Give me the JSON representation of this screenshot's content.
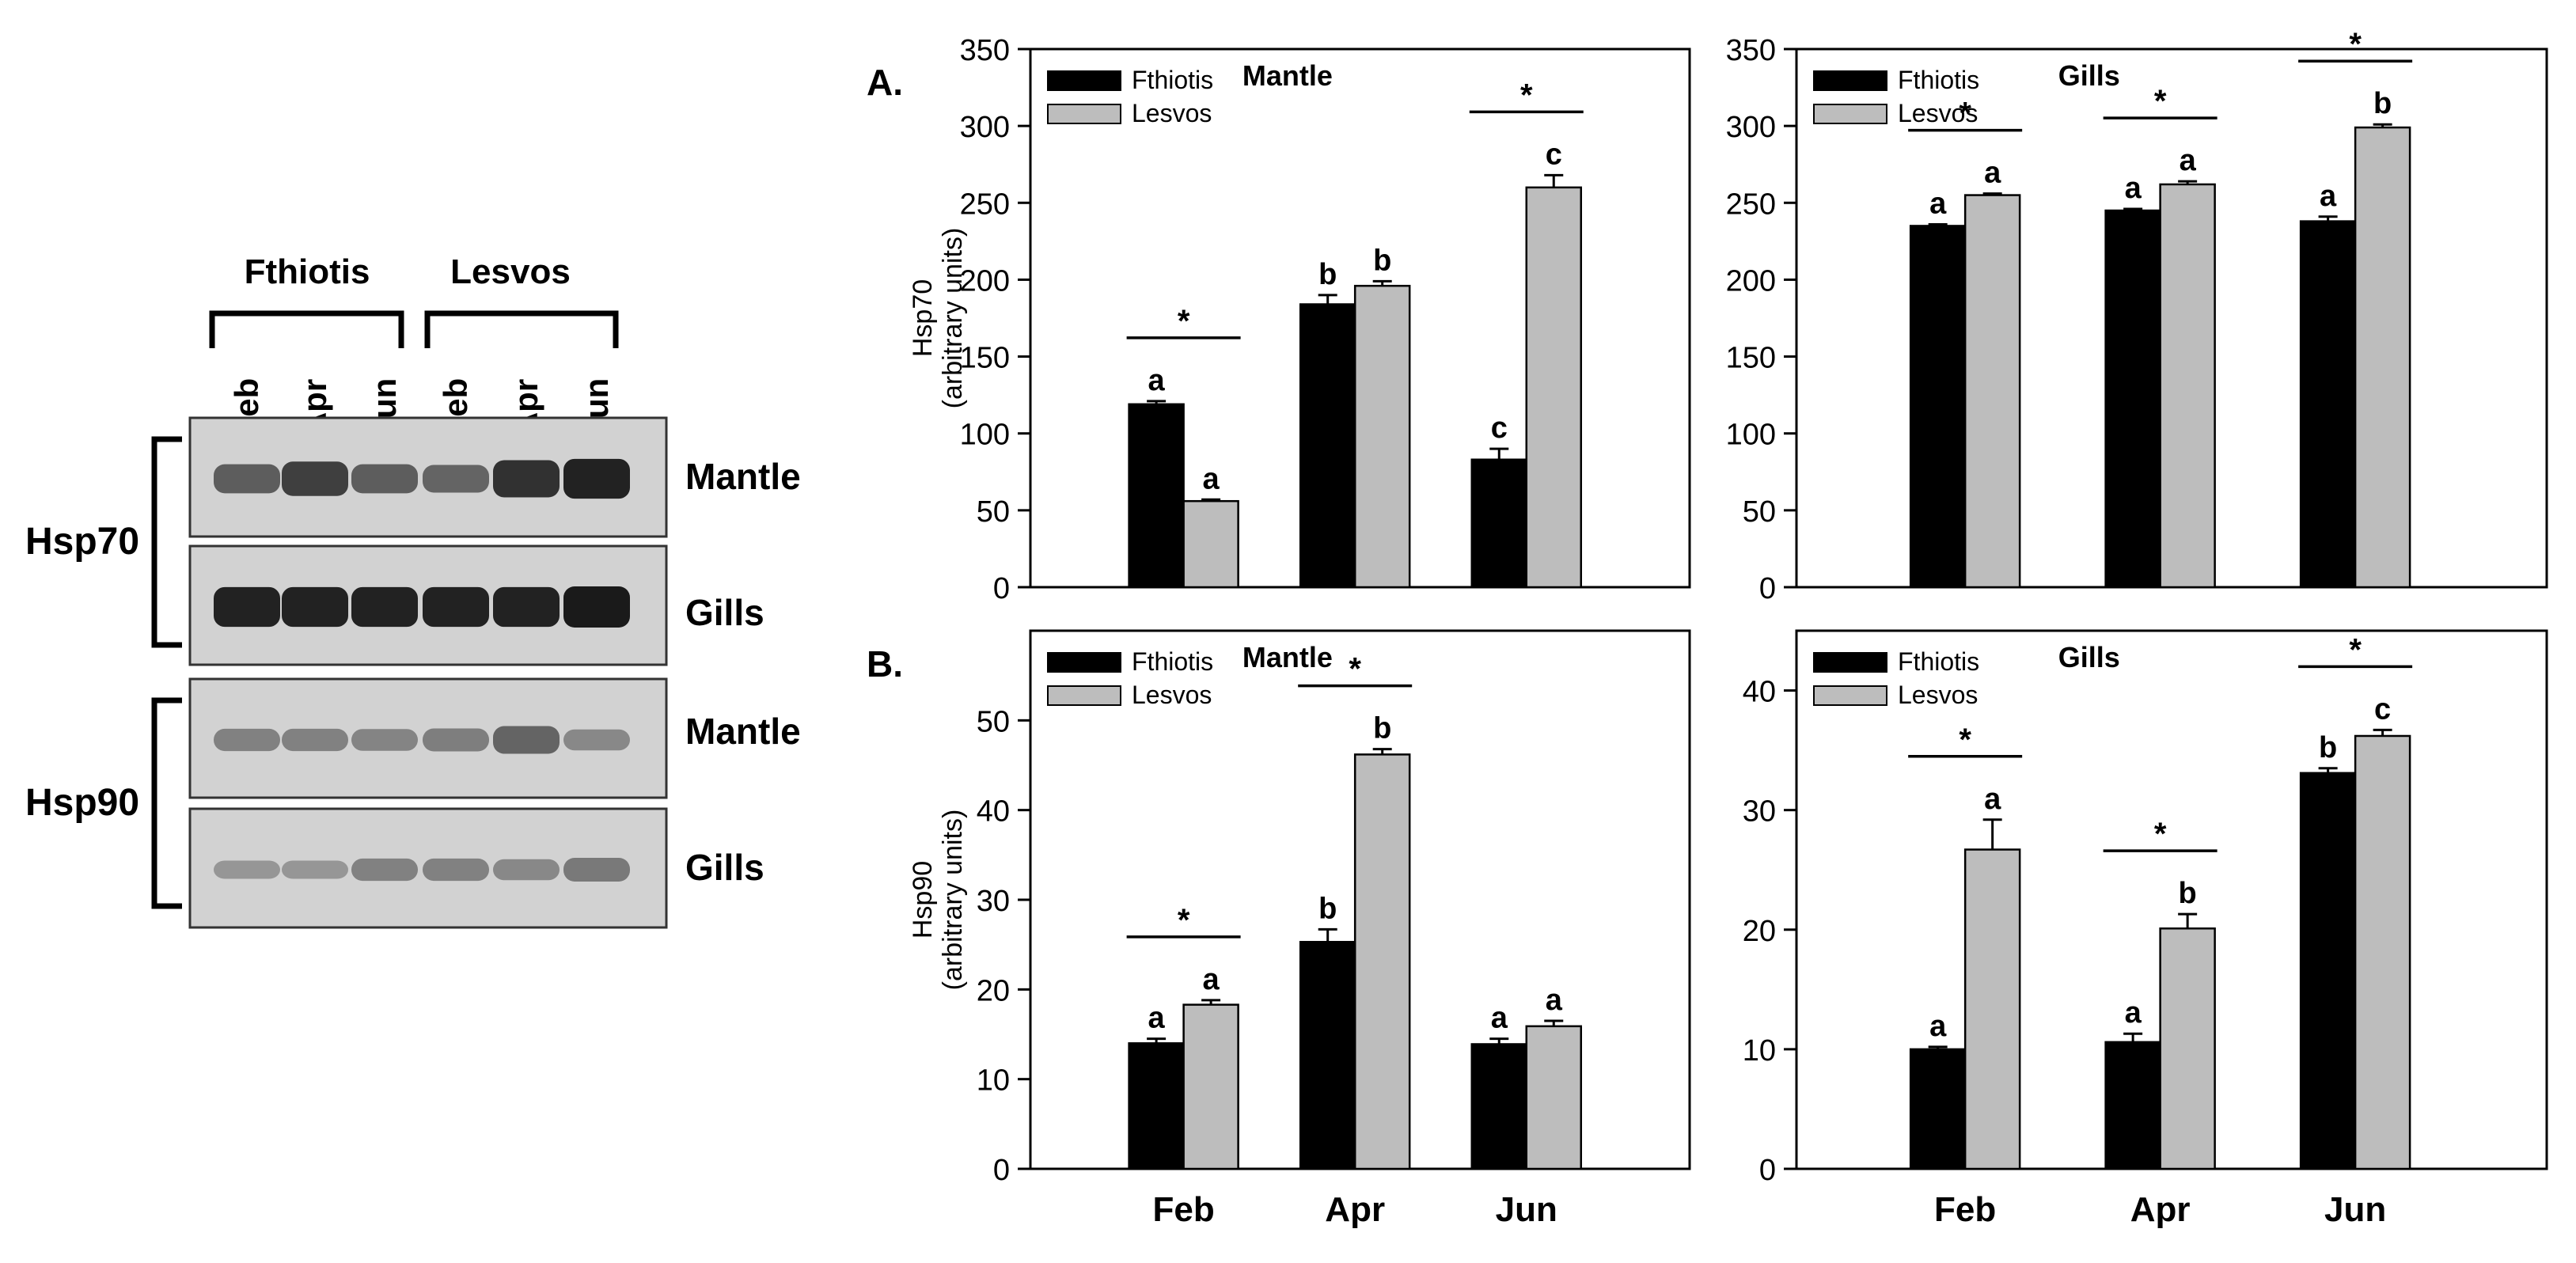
{
  "colors": {
    "fthiotis": "#000000",
    "lesvos": "#bdbdbd",
    "blot_bg": "#d2d2d2",
    "band": "#1a1a1a"
  },
  "blot": {
    "groups": [
      "Fthiotis",
      "Lesvos"
    ],
    "lanes": [
      "Feb",
      "Apr",
      "Jun",
      "Feb",
      "Apr",
      "Jun"
    ],
    "proteins": [
      "Hsp70",
      "Hsp90"
    ],
    "panels": [
      {
        "protein": "Hsp70",
        "tissue": "Mantle",
        "intensity": [
          0.55,
          0.75,
          0.55,
          0.5,
          0.85,
          0.95
        ]
      },
      {
        "protein": "Hsp70",
        "tissue": "Gills",
        "intensity": [
          0.95,
          0.95,
          0.95,
          0.95,
          0.95,
          1.0
        ]
      },
      {
        "protein": "Hsp90",
        "tissue": "Mantle",
        "intensity": [
          0.3,
          0.3,
          0.28,
          0.32,
          0.5,
          0.25
        ]
      },
      {
        "protein": "Hsp90",
        "tissue": "Gills",
        "intensity": [
          0.15,
          0.15,
          0.3,
          0.3,
          0.25,
          0.35
        ]
      }
    ]
  },
  "chart_data": [
    {
      "type": "bar",
      "panel_label": "A.",
      "title": "Mantle",
      "ylabel": "Hsp70",
      "ylabel2": "(arbitrary units)",
      "ylim": [
        0,
        350
      ],
      "yticks": [
        0,
        50,
        100,
        150,
        200,
        250,
        300,
        350
      ],
      "categories": [
        "Feb",
        "Apr",
        "Jun"
      ],
      "legend": [
        "Fthiotis",
        "Lesvos"
      ],
      "series": [
        {
          "name": "Fthiotis",
          "values": [
            119,
            184,
            83
          ],
          "errors": [
            2,
            6,
            7
          ],
          "letters": [
            "a",
            "b",
            "c"
          ]
        },
        {
          "name": "Lesvos",
          "values": [
            56,
            196,
            260
          ],
          "errors": [
            1,
            3,
            8
          ],
          "letters": [
            "a",
            "b",
            "c"
          ]
        }
      ],
      "significance": [
        "*",
        "",
        "*"
      ]
    },
    {
      "type": "bar",
      "title": "Gills",
      "ylim": [
        0,
        350
      ],
      "yticks": [
        0,
        50,
        100,
        150,
        200,
        250,
        300,
        350
      ],
      "categories": [
        "Feb",
        "Apr",
        "Jun"
      ],
      "legend": [
        "Fthiotis",
        "Lesvos"
      ],
      "series": [
        {
          "name": "Fthiotis",
          "values": [
            235,
            245,
            238
          ],
          "errors": [
            1,
            1,
            3
          ],
          "letters": [
            "a",
            "a",
            "a"
          ]
        },
        {
          "name": "Lesvos",
          "values": [
            255,
            262,
            299
          ],
          "errors": [
            1,
            2,
            2
          ],
          "letters": [
            "a",
            "a",
            "b"
          ]
        }
      ],
      "significance": [
        "*",
        "*",
        "*"
      ]
    },
    {
      "type": "bar",
      "panel_label": "B.",
      "title": "Mantle",
      "ylabel": "Hsp90",
      "ylabel2": "(arbitrary units)",
      "ylim": [
        0,
        60
      ],
      "yticks": [
        0,
        10,
        20,
        30,
        40,
        50
      ],
      "categories": [
        "Feb",
        "Apr",
        "Jun"
      ],
      "legend": [
        "Fthiotis",
        "Lesvos"
      ],
      "series": [
        {
          "name": "Fthiotis",
          "values": [
            14,
            25.3,
            13.9
          ],
          "errors": [
            0.5,
            1.4,
            0.6
          ],
          "letters": [
            "a",
            "b",
            "a"
          ]
        },
        {
          "name": "Lesvos",
          "values": [
            18.3,
            46.2,
            15.9
          ],
          "errors": [
            0.5,
            0.6,
            0.6
          ],
          "letters": [
            "a",
            "b",
            "a"
          ]
        }
      ],
      "significance": [
        "*",
        "*",
        ""
      ]
    },
    {
      "type": "bar",
      "title": "Gills",
      "ylim": [
        0,
        45
      ],
      "yticks": [
        0,
        10,
        20,
        30,
        40
      ],
      "categories": [
        "Feb",
        "Apr",
        "Jun"
      ],
      "legend": [
        "Fthiotis",
        "Lesvos"
      ],
      "series": [
        {
          "name": "Fthiotis",
          "values": [
            10,
            10.6,
            33.1
          ],
          "errors": [
            0.2,
            0.7,
            0.4
          ],
          "letters": [
            "a",
            "a",
            "b"
          ]
        },
        {
          "name": "Lesvos",
          "values": [
            26.7,
            20.1,
            36.2
          ],
          "errors": [
            2.5,
            1.2,
            0.5
          ],
          "letters": [
            "a",
            "b",
            "c"
          ]
        }
      ],
      "significance": [
        "*",
        "*",
        "*"
      ]
    }
  ]
}
